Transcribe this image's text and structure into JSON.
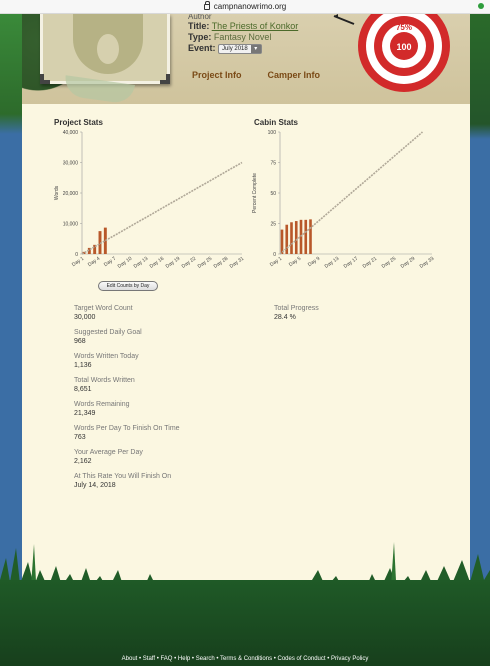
{
  "browser": {
    "url": "campnanowrimo.org"
  },
  "novel": {
    "author_cut": "Author",
    "title_label": "Title:",
    "title": "The Priests of Konkor",
    "type_label": "Type:",
    "type": "Fantasy Novel",
    "event_label": "Event:",
    "event_value": "July 2018"
  },
  "tabs": [
    {
      "label": "Project Info"
    },
    {
      "label": "Camper Info"
    }
  ],
  "target": {
    "percent": "75%",
    "center": "100"
  },
  "project_stats": {
    "title": "Project Stats",
    "edit_button": "Edit Counts by Day"
  },
  "cabin_stats": {
    "title": "Cabin Stats",
    "total_progress_label": "Total Progress",
    "total_progress_value": "28.4 %"
  },
  "stats": [
    {
      "label": "Target Word Count",
      "value": "30,000"
    },
    {
      "label": "Suggested Daily Goal",
      "value": "968"
    },
    {
      "label": "Words Written Today",
      "value": "1,136"
    },
    {
      "label": "Total Words Written",
      "value": "8,651"
    },
    {
      "label": "Words Remaining",
      "value": "21,349"
    },
    {
      "label": "Words Per Day To Finish On Time",
      "value": "763"
    },
    {
      "label": "Your Average Per Day",
      "value": "2,162"
    },
    {
      "label": "At This Rate You Will Finish On",
      "value": "July 14, 2018"
    }
  ],
  "footer": {
    "links": [
      "About",
      "Staff",
      "FAQ",
      "Help",
      "Search",
      "Terms & Conditions",
      "Codes of Conduct",
      "Privacy Policy"
    ]
  },
  "chart_data": [
    {
      "type": "bar",
      "title": "Project Stats",
      "ylabel": "Words",
      "xlabel": "",
      "ylim": [
        0,
        40000
      ],
      "yticks": [
        "0",
        "10,000",
        "20,000",
        "30,000",
        "40,000"
      ],
      "categories": [
        "Day 1",
        "Day 4",
        "Day 7",
        "Day 10",
        "Day 13",
        "Day 16",
        "Day 19",
        "Day 22",
        "Day 25",
        "Day 28",
        "Day 31"
      ],
      "bars": [
        {
          "day": 1,
          "value": 700
        },
        {
          "day": 2,
          "value": 2000
        },
        {
          "day": 3,
          "value": 3000
        },
        {
          "day": 4,
          "value": 7500
        },
        {
          "day": 5,
          "value": 8651
        }
      ],
      "target_line": {
        "from": [
          1,
          0
        ],
        "to": [
          31,
          30000
        ]
      },
      "days": 31
    },
    {
      "type": "bar",
      "title": "Cabin Stats",
      "ylabel": "Percent Complete",
      "xlabel": "",
      "ylim": [
        0,
        100
      ],
      "yticks": [
        "0",
        "25",
        "50",
        "75",
        "100"
      ],
      "categories": [
        "Day 1",
        "Day 5",
        "Day 9",
        "Day 13",
        "Day 17",
        "Day 21",
        "Day 25",
        "Day 29",
        "Day 33"
      ],
      "bars": [
        {
          "day": 1,
          "value": 20
        },
        {
          "day": 2,
          "value": 24
        },
        {
          "day": 3,
          "value": 26
        },
        {
          "day": 4,
          "value": 27
        },
        {
          "day": 5,
          "value": 28
        },
        {
          "day": 6,
          "value": 28
        },
        {
          "day": 7,
          "value": 28.4
        }
      ],
      "target_line": {
        "from": [
          1,
          0
        ],
        "to": [
          31,
          100
        ]
      },
      "days": 33
    }
  ]
}
